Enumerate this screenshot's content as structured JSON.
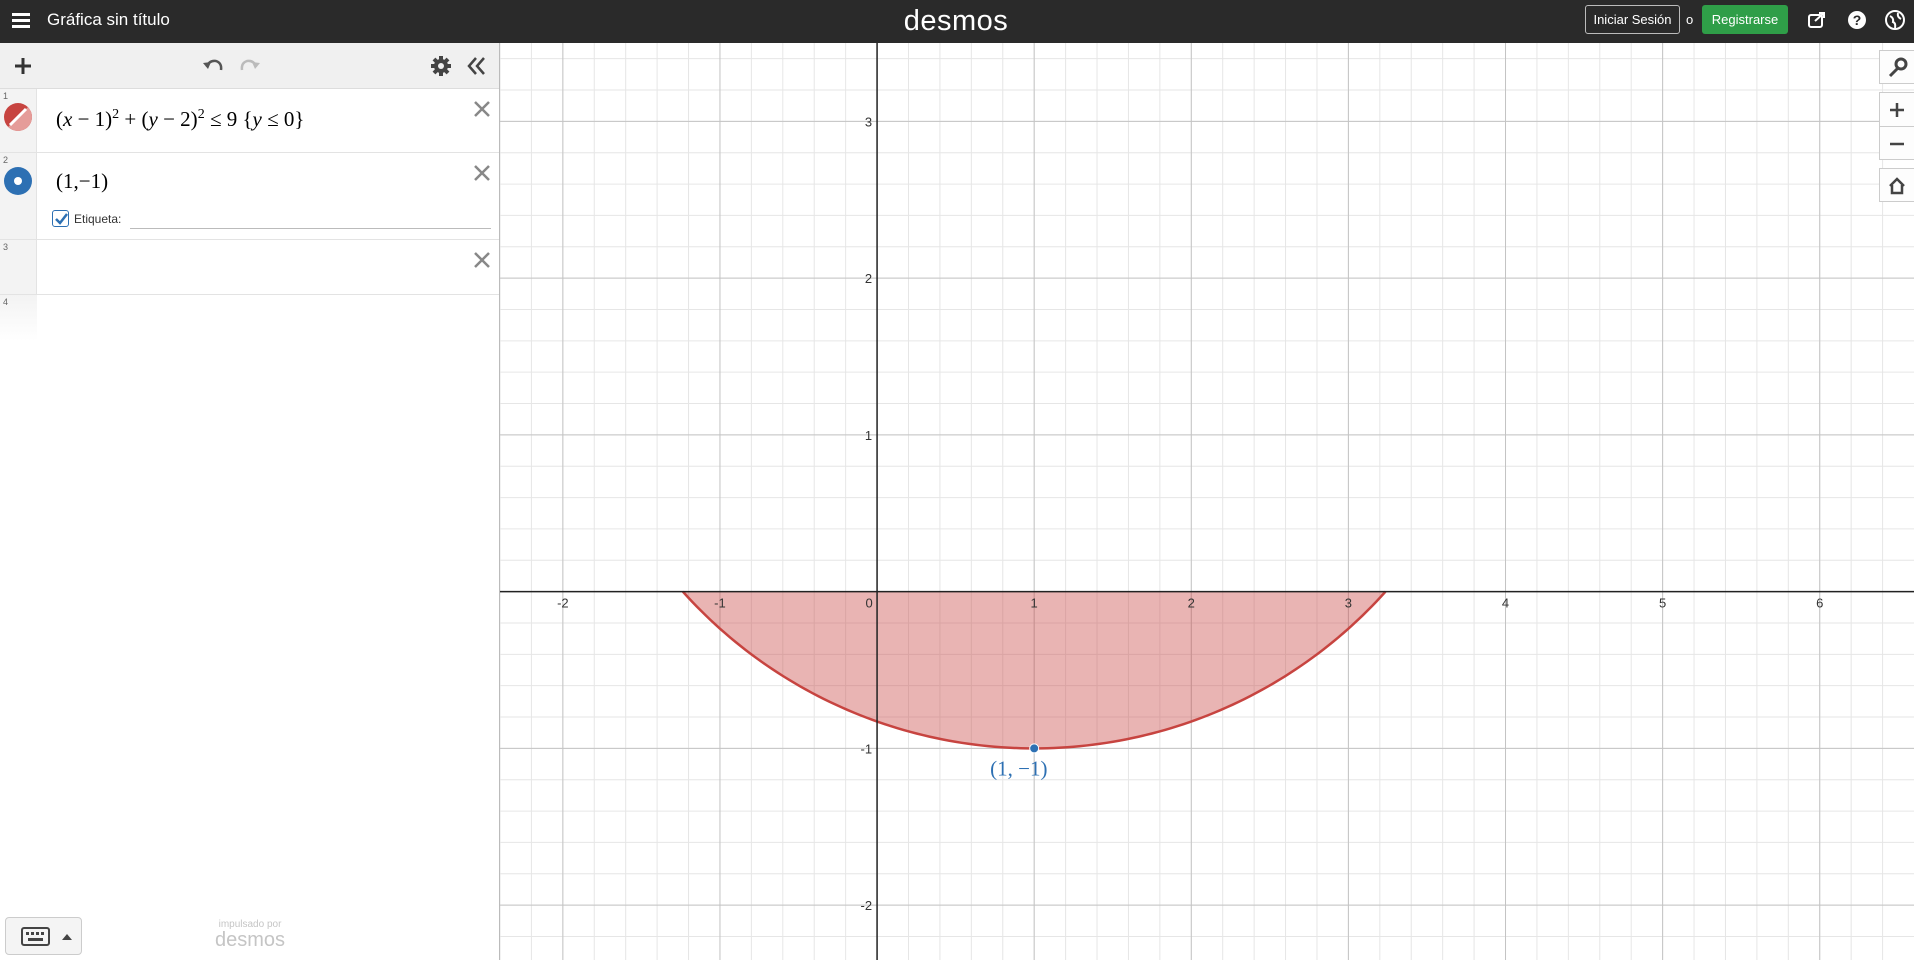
{
  "header": {
    "menu_icon": "hamburger-menu-icon",
    "title": "Gráfica sin título",
    "logo": "desmos",
    "signin_label": "Iniciar Sesión",
    "or_label": "o",
    "register_label": "Registrarse",
    "register_color": "#2f9e48",
    "icons": [
      "share-icon",
      "help-icon",
      "language-globe-icon"
    ]
  },
  "toolbar": {
    "icons": [
      "add-item-icon",
      "undo-icon",
      "redo-icon",
      "settings-gear-icon",
      "collapse-panel-icon"
    ]
  },
  "expressions": [
    {
      "index": "1",
      "latex": "(x-1)^2+(y-2)^2\\le 9\\{y\\le 0\\}",
      "color": "#c74440",
      "parts": {
        "a": "(",
        "b": "x",
        "c": " − 1)",
        "d": "2",
        "e": " + (",
        "f": "y",
        "g": " − 2)",
        "h": "2",
        "i": " ≤ 9 {",
        "j": "y",
        "k": " ≤ 0}"
      }
    },
    {
      "index": "2",
      "latex": "(1,-1)",
      "color": "#2d70b3",
      "display": "(1,−1)",
      "label_checkbox": "Etiqueta:",
      "label_value": ""
    },
    {
      "index": "3"
    },
    {
      "index": "4"
    }
  ],
  "footer": {
    "keyboard_icon": "keyboard-icon",
    "powered_by": "impulsado por",
    "powered_logo": "desmos"
  },
  "graph": {
    "x_ticks": [
      "-2",
      "-1",
      "0",
      "1",
      "2",
      "3",
      "4",
      "5",
      "6"
    ],
    "y_ticks": [
      "3",
      "2",
      "1",
      "-1",
      "-2"
    ],
    "point_label": "(1, −1)",
    "fill_color": "#c74440",
    "point_color": "#2d70b3",
    "side_icons": [
      "wrench-icon",
      "zoom-in-icon",
      "zoom-out-icon",
      "home-icon"
    ]
  },
  "chart_data": {
    "type": "scatter",
    "xlim": [
      -2.4,
      6.6
    ],
    "ylim": [
      -2.35,
      3.5
    ],
    "grid": true,
    "regions": [
      {
        "name": "(x-1)^2+(y-2)^2 ≤ 9 {y ≤ 0}",
        "center": [
          1,
          2
        ],
        "radius": 3,
        "restriction": "y ≤ 0",
        "color": "#c74440"
      }
    ],
    "points": [
      {
        "x": 1,
        "y": -1,
        "label": "(1, −1)",
        "color": "#2d70b3"
      }
    ]
  }
}
